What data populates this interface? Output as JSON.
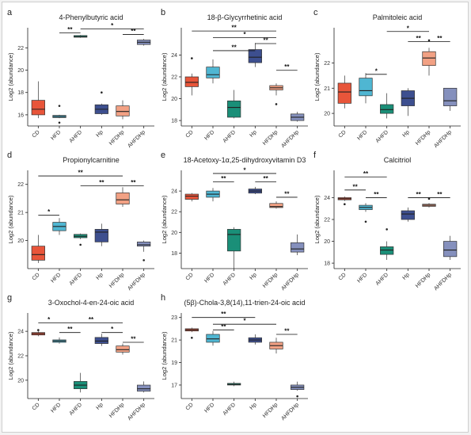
{
  "groups": [
    "CD",
    "HFD",
    "AHFD",
    "Hp",
    "HFDHp",
    "AHFDHp"
  ],
  "colors": {
    "CD": "#e8553a",
    "HFD": "#4fb6d2",
    "AHFD": "#1a8f78",
    "Hp": "#3d4f8f",
    "HFDHp": "#f2a184",
    "AHFDHp": "#8590bd"
  },
  "y_axis_label": "Log2 (abundance)",
  "chart_data": [
    {
      "letter": "a",
      "title": "4-Phenylbutyric acid",
      "type": "box",
      "ylim": [
        15,
        23.8
      ],
      "yticks": [
        16,
        18,
        20,
        22
      ],
      "boxes": [
        {
          "group": "CD",
          "min": 15.7,
          "q1": 16.0,
          "median": 16.5,
          "q3": 17.3,
          "max": 19.0,
          "outliers": []
        },
        {
          "group": "HFD",
          "min": 15.7,
          "q1": 15.75,
          "median": 15.85,
          "q3": 15.95,
          "max": 16.0,
          "outliers": [
            16.8,
            15.3
          ]
        },
        {
          "group": "AHFD",
          "min": 22.9,
          "q1": 22.95,
          "median": 23.0,
          "q3": 23.1,
          "max": 23.15,
          "outliers": []
        },
        {
          "group": "Hp",
          "min": 16.0,
          "q1": 16.1,
          "median": 16.5,
          "q3": 16.9,
          "max": 17.0,
          "outliers": [
            18.0
          ]
        },
        {
          "group": "HFDHp",
          "min": 15.6,
          "q1": 15.9,
          "median": 16.3,
          "q3": 16.8,
          "max": 17.3,
          "outliers": []
        },
        {
          "group": "AHFDHp",
          "min": 22.2,
          "q1": 22.3,
          "median": 22.5,
          "q3": 22.7,
          "max": 22.8,
          "outliers": []
        }
      ],
      "brackets": [
        {
          "from": "HFD",
          "to": "AHFD",
          "y": 23.35,
          "label": "**"
        },
        {
          "from": "AHFD",
          "to": "AHFDHp",
          "y": 23.7,
          "label": "*"
        },
        {
          "from": "HFDHp",
          "to": "AHFDHp",
          "y": 23.2,
          "label": "**"
        }
      ]
    },
    {
      "letter": "b",
      "title": "18-β-Glycyrrhetinic acid",
      "type": "box",
      "ylim": [
        17.5,
        26.5
      ],
      "yticks": [
        18,
        20,
        22,
        24
      ],
      "boxes": [
        {
          "group": "CD",
          "min": 20.3,
          "q1": 21.1,
          "median": 21.5,
          "q3": 22.0,
          "max": 22.3,
          "outliers": [
            23.7
          ]
        },
        {
          "group": "HFD",
          "min": 21.4,
          "q1": 21.9,
          "median": 22.2,
          "q3": 22.9,
          "max": 23.6,
          "outliers": []
        },
        {
          "group": "AHFD",
          "min": 18.2,
          "q1": 18.3,
          "median": 19.2,
          "q3": 19.8,
          "max": 20.8,
          "outliers": []
        },
        {
          "group": "Hp",
          "min": 22.9,
          "q1": 23.3,
          "median": 23.8,
          "q3": 24.5,
          "max": 25.1,
          "outliers": []
        },
        {
          "group": "HFDHp",
          "min": 20.3,
          "q1": 20.8,
          "median": 21.0,
          "q3": 21.2,
          "max": 21.4,
          "outliers": [
            19.5
          ]
        },
        {
          "group": "AHFDHp",
          "min": 17.9,
          "q1": 18.0,
          "median": 18.3,
          "q3": 18.6,
          "max": 18.8,
          "outliers": []
        }
      ],
      "brackets": [
        {
          "from": "CD",
          "to": "HFDHp",
          "y": 26.2,
          "label": "**"
        },
        {
          "from": "HFD",
          "to": "HFDHp",
          "y": 25.6,
          "label": "*"
        },
        {
          "from": "HFD",
          "to": "Hp",
          "y": 24.4,
          "label": "**"
        },
        {
          "from": "Hp",
          "to": "HFDHp",
          "y": 25.05,
          "label": "**"
        },
        {
          "from": "HFDHp",
          "to": "AHFDHp",
          "y": 22.6,
          "label": "**"
        }
      ]
    },
    {
      "letter": "c",
      "title": "Palmitoleic acid",
      "type": "box",
      "ylim": [
        19.5,
        23.4
      ],
      "yticks": [
        20,
        21,
        22
      ],
      "boxes": [
        {
          "group": "CD",
          "min": 20.2,
          "q1": 20.4,
          "median": 20.85,
          "q3": 21.2,
          "max": 21.5,
          "outliers": []
        },
        {
          "group": "HFD",
          "min": 20.4,
          "q1": 20.7,
          "median": 20.9,
          "q3": 21.4,
          "max": 21.6,
          "outliers": []
        },
        {
          "group": "AHFD",
          "min": 19.8,
          "q1": 20.0,
          "median": 20.15,
          "q3": 20.35,
          "max": 20.8,
          "outliers": []
        },
        {
          "group": "Hp",
          "min": 19.9,
          "q1": 20.3,
          "median": 20.6,
          "q3": 20.9,
          "max": 21.0,
          "outliers": []
        },
        {
          "group": "HFDHp",
          "min": 21.5,
          "q1": 21.9,
          "median": 22.2,
          "q3": 22.45,
          "max": 22.6,
          "outliers": [
            22.9
          ]
        },
        {
          "group": "AHFDHp",
          "min": 20.1,
          "q1": 20.3,
          "median": 20.5,
          "q3": 21.0,
          "max": 21.0,
          "outliers": []
        }
      ],
      "brackets": [
        {
          "from": "HFD",
          "to": "AHFD",
          "y": 21.55,
          "label": "*"
        },
        {
          "from": "AHFD",
          "to": "HFDHp",
          "y": 23.25,
          "label": "*"
        },
        {
          "from": "Hp",
          "to": "HFDHp",
          "y": 22.85,
          "label": "**"
        },
        {
          "from": "HFDHp",
          "to": "AHFDHp",
          "y": 22.85,
          "label": "**"
        }
      ]
    },
    {
      "letter": "d",
      "title": "Propionylcarnitine",
      "type": "box",
      "ylim": [
        19,
        22.5
      ],
      "yticks": [
        20,
        21,
        22
      ],
      "boxes": [
        {
          "group": "CD",
          "min": 19.2,
          "q1": 19.3,
          "median": 19.5,
          "q3": 19.8,
          "max": 20.2,
          "outliers": []
        },
        {
          "group": "HFD",
          "min": 20.2,
          "q1": 20.35,
          "median": 20.5,
          "q3": 20.65,
          "max": 20.8,
          "outliers": []
        },
        {
          "group": "AHFD",
          "min": 20.05,
          "q1": 20.1,
          "median": 20.15,
          "q3": 20.22,
          "max": 20.25,
          "outliers": [
            19.85
          ]
        },
        {
          "group": "Hp",
          "min": 19.8,
          "q1": 19.95,
          "median": 20.3,
          "q3": 20.4,
          "max": 20.6,
          "outliers": []
        },
        {
          "group": "HFDHp",
          "min": 21.2,
          "q1": 21.3,
          "median": 21.45,
          "q3": 21.7,
          "max": 21.9,
          "outliers": []
        },
        {
          "group": "AHFDHp",
          "min": 19.6,
          "q1": 19.8,
          "median": 19.85,
          "q3": 19.95,
          "max": 20.0,
          "outliers": [
            19.3
          ]
        }
      ],
      "brackets": [
        {
          "from": "CD",
          "to": "HFD",
          "y": 20.9,
          "label": "*"
        },
        {
          "from": "CD",
          "to": "HFDHp",
          "y": 22.3,
          "label": "**"
        },
        {
          "from": "AHFD",
          "to": "HFDHp",
          "y": 21.95,
          "label": "**"
        },
        {
          "from": "HFDHp",
          "to": "AHFDHp",
          "y": 21.95,
          "label": "**"
        }
      ]
    },
    {
      "letter": "e",
      "title": "18-Acetoxy-1α,25-dihydroxyvitamin D3",
      "type": "box",
      "ylim": [
        16.5,
        26
      ],
      "yticks": [
        18,
        20,
        22,
        24
      ],
      "boxes": [
        {
          "group": "CD",
          "min": 23.0,
          "q1": 23.2,
          "median": 23.5,
          "q3": 23.7,
          "max": 23.8,
          "outliers": []
        },
        {
          "group": "HFD",
          "min": 23.0,
          "q1": 23.4,
          "median": 23.7,
          "q3": 24.0,
          "max": 24.3,
          "outliers": []
        },
        {
          "group": "AHFD",
          "min": 16.5,
          "q1": 18.2,
          "median": 19.8,
          "q3": 20.3,
          "max": 20.5,
          "outliers": []
        },
        {
          "group": "Hp",
          "min": 23.7,
          "q1": 23.8,
          "median": 24.0,
          "q3": 24.2,
          "max": 24.4,
          "outliers": []
        },
        {
          "group": "HFDHp",
          "min": 22.3,
          "q1": 22.4,
          "median": 22.5,
          "q3": 22.8,
          "max": 23.0,
          "outliers": []
        },
        {
          "group": "AHFDHp",
          "min": 17.8,
          "q1": 18.1,
          "median": 18.4,
          "q3": 19.0,
          "max": 19.8,
          "outliers": []
        }
      ],
      "brackets": [
        {
          "from": "HFD",
          "to": "HFDHp",
          "y": 25.7,
          "label": "*"
        },
        {
          "from": "HFD",
          "to": "AHFD",
          "y": 24.9,
          "label": "**"
        },
        {
          "from": "Hp",
          "to": "HFDHp",
          "y": 24.9,
          "label": "**"
        },
        {
          "from": "HFDHp",
          "to": "AHFDHp",
          "y": 23.4,
          "label": "**"
        }
      ]
    },
    {
      "letter": "f",
      "title": "Calcitriol",
      "type": "box",
      "ylim": [
        17.5,
        26.5
      ],
      "yticks": [
        18,
        20,
        22,
        24
      ],
      "boxes": [
        {
          "group": "CD",
          "min": 23.7,
          "q1": 23.8,
          "median": 23.9,
          "q3": 24.0,
          "max": 24.1,
          "outliers": [
            23.4
          ]
        },
        {
          "group": "HFD",
          "min": 22.7,
          "q1": 22.9,
          "median": 23.1,
          "q3": 23.3,
          "max": 23.5,
          "outliers": [
            21.8
          ]
        },
        {
          "group": "AHFD",
          "min": 18.3,
          "q1": 18.8,
          "median": 19.2,
          "q3": 19.5,
          "max": 20.0,
          "outliers": [
            21.1
          ]
        },
        {
          "group": "Hp",
          "min": 21.8,
          "q1": 22.0,
          "median": 22.5,
          "q3": 22.8,
          "max": 23.1,
          "outliers": []
        },
        {
          "group": "HFDHp",
          "min": 23.1,
          "q1": 23.2,
          "median": 23.3,
          "q3": 23.4,
          "max": 23.5,
          "outliers": [
            23.9
          ]
        },
        {
          "group": "AHFDHp",
          "min": 18.3,
          "q1": 18.6,
          "median": 19.2,
          "q3": 20.0,
          "max": 20.5,
          "outliers": []
        }
      ],
      "brackets": [
        {
          "from": "CD",
          "to": "HFD",
          "y": 24.7,
          "label": "**"
        },
        {
          "from": "CD",
          "to": "AHFD",
          "y": 25.9,
          "label": "**"
        },
        {
          "from": "HFD",
          "to": "AHFD",
          "y": 24.0,
          "label": "**"
        },
        {
          "from": "Hp",
          "to": "HFDHp",
          "y": 24.0,
          "label": "**"
        },
        {
          "from": "HFDHp",
          "to": "AHFDHp",
          "y": 24.0,
          "label": "**"
        }
      ]
    },
    {
      "letter": "g",
      "title": "3-Oxochol-4-en-24-oic acid",
      "type": "box",
      "ylim": [
        18.5,
        25.5
      ],
      "yticks": [
        20,
        22,
        24
      ],
      "boxes": [
        {
          "group": "CD",
          "min": 23.6,
          "q1": 23.7,
          "median": 23.8,
          "q3": 23.9,
          "max": 24.0,
          "outliers": [
            24.1
          ]
        },
        {
          "group": "HFD",
          "min": 23.0,
          "q1": 23.1,
          "median": 23.2,
          "q3": 23.3,
          "max": 23.5,
          "outliers": []
        },
        {
          "group": "AHFD",
          "min": 19.0,
          "q1": 19.3,
          "median": 19.6,
          "q3": 19.9,
          "max": 20.6,
          "outliers": []
        },
        {
          "group": "Hp",
          "min": 22.8,
          "q1": 23.0,
          "median": 23.2,
          "q3": 23.5,
          "max": 23.8,
          "outliers": []
        },
        {
          "group": "HFDHp",
          "min": 22.1,
          "q1": 22.3,
          "median": 22.5,
          "q3": 22.8,
          "max": 23.0,
          "outliers": []
        },
        {
          "group": "AHFDHp",
          "min": 19.0,
          "q1": 19.1,
          "median": 19.3,
          "q3": 19.6,
          "max": 19.9,
          "outliers": []
        }
      ],
      "brackets": [
        {
          "from": "CD",
          "to": "HFD",
          "y": 24.7,
          "label": "*"
        },
        {
          "from": "HFD",
          "to": "HFDHp",
          "y": 24.7,
          "label": "**"
        },
        {
          "from": "HFD",
          "to": "AHFD",
          "y": 23.9,
          "label": "**"
        },
        {
          "from": "Hp",
          "to": "HFDHp",
          "y": 23.9,
          "label": "*"
        },
        {
          "from": "HFDHp",
          "to": "AHFDHp",
          "y": 23.1,
          "label": "**"
        }
      ]
    },
    {
      "letter": "h",
      "title": "(5β)-Chola-3,8(14),11-trien-24-oic acid",
      "type": "box",
      "ylim": [
        15.8,
        23.4
      ],
      "yticks": [
        17,
        19,
        21,
        23
      ],
      "boxes": [
        {
          "group": "CD",
          "min": 21.7,
          "q1": 21.8,
          "median": 21.9,
          "q3": 22.0,
          "max": 22.1,
          "outliers": [
            21.2
          ]
        },
        {
          "group": "HFD",
          "min": 20.5,
          "q1": 20.8,
          "median": 21.1,
          "q3": 21.5,
          "max": 21.8,
          "outliers": []
        },
        {
          "group": "AHFD",
          "min": 16.9,
          "q1": 17.0,
          "median": 17.05,
          "q3": 17.15,
          "max": 17.3,
          "outliers": []
        },
        {
          "group": "Hp",
          "min": 20.6,
          "q1": 20.8,
          "median": 21.0,
          "q3": 21.2,
          "max": 21.5,
          "outliers": []
        },
        {
          "group": "HFDHp",
          "min": 19.8,
          "q1": 20.2,
          "median": 20.5,
          "q3": 20.8,
          "max": 21.2,
          "outliers": []
        },
        {
          "group": "AHFDHp",
          "min": 16.5,
          "q1": 16.6,
          "median": 16.8,
          "q3": 17.0,
          "max": 17.3,
          "outliers": [
            16.0
          ]
        }
      ],
      "brackets": [
        {
          "from": "CD",
          "to": "Hp",
          "y": 23.0,
          "label": "**"
        },
        {
          "from": "HFD",
          "to": "HFDHp",
          "y": 22.4,
          "label": "*"
        },
        {
          "from": "HFD",
          "to": "AHFD",
          "y": 21.9,
          "label": "**"
        },
        {
          "from": "HFDHp",
          "to": "AHFDHp",
          "y": 21.5,
          "label": "**"
        }
      ]
    }
  ]
}
